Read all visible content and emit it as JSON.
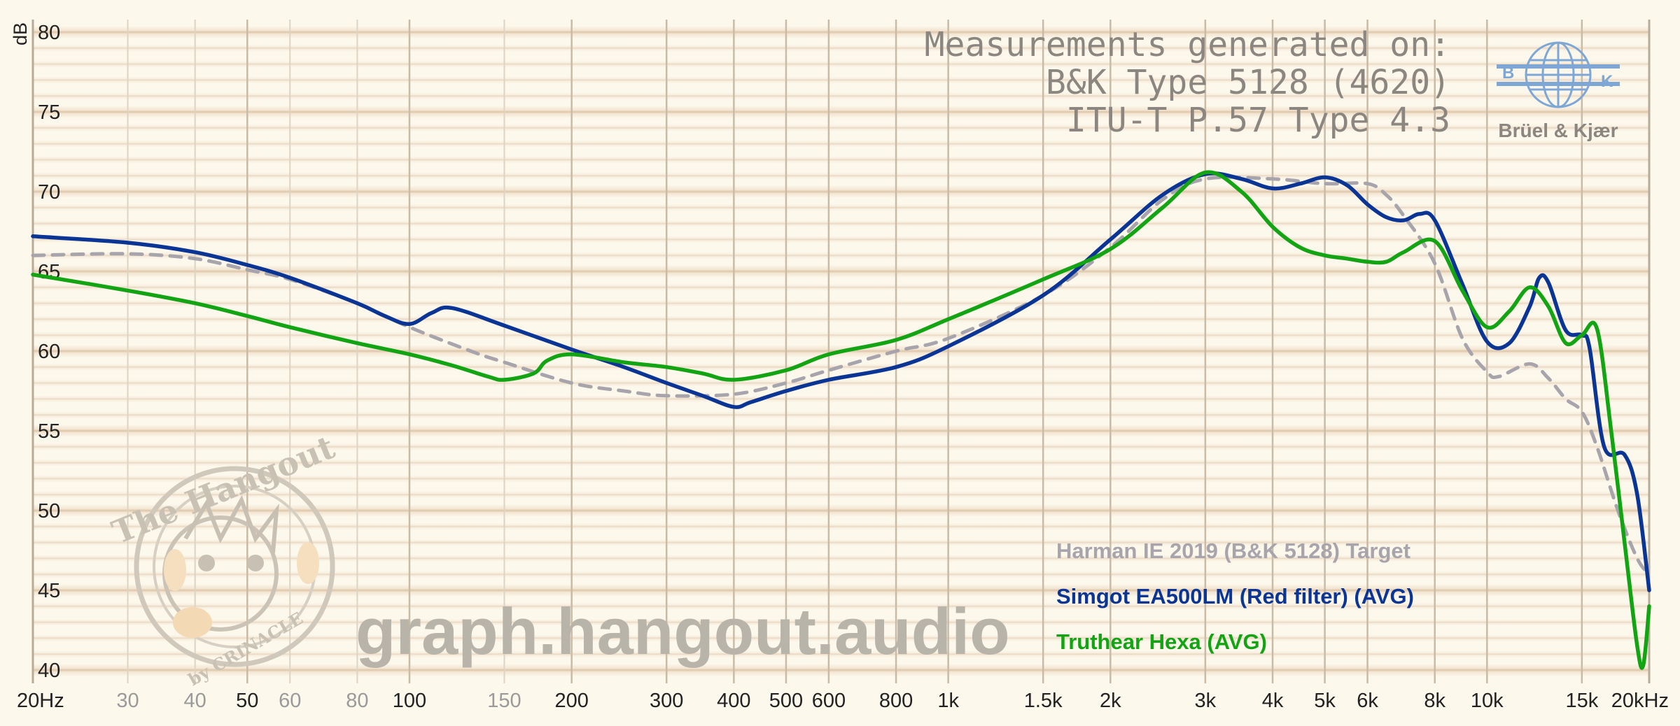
{
  "header": {
    "measurement_lines": [
      "Measurements generated on:",
      "B&K Type 5128 (4620)",
      "ITU-T P.57 Type 4.3"
    ],
    "logo_text": "Brüel & Kjær",
    "logo_letters": [
      "B",
      "K"
    ]
  },
  "watermark": {
    "site": "graph.hangout.audio",
    "stamp_top": "The Hangout",
    "stamp_bottom": "by CRINACLE"
  },
  "chart_data": {
    "type": "line",
    "title": "",
    "xlabel": "",
    "ylabel": "dB",
    "x_scale": "log",
    "xlim": [
      20,
      20000
    ],
    "ylim": [
      40,
      80
    ],
    "grid": true,
    "legend_position": "bottom-right",
    "y_ticks": [
      "80",
      "75",
      "70",
      "65",
      "60",
      "55",
      "50",
      "45",
      "40"
    ],
    "x_ticks": [
      {
        "value": 20,
        "label": "20Hz",
        "minor": false
      },
      {
        "value": 30,
        "label": "30",
        "minor": true
      },
      {
        "value": 40,
        "label": "40",
        "minor": true
      },
      {
        "value": 50,
        "label": "50",
        "minor": false
      },
      {
        "value": 60,
        "label": "60",
        "minor": true
      },
      {
        "value": 80,
        "label": "80",
        "minor": true
      },
      {
        "value": 100,
        "label": "100",
        "minor": false
      },
      {
        "value": 150,
        "label": "150",
        "minor": true
      },
      {
        "value": 200,
        "label": "200",
        "minor": false
      },
      {
        "value": 300,
        "label": "300",
        "minor": false
      },
      {
        "value": 400,
        "label": "400",
        "minor": false
      },
      {
        "value": 500,
        "label": "500",
        "minor": false
      },
      {
        "value": 600,
        "label": "600",
        "minor": false
      },
      {
        "value": 800,
        "label": "800",
        "minor": false
      },
      {
        "value": 1000,
        "label": "1k",
        "minor": false
      },
      {
        "value": 1500,
        "label": "1.5k",
        "minor": false
      },
      {
        "value": 2000,
        "label": "2k",
        "minor": false
      },
      {
        "value": 3000,
        "label": "3k",
        "minor": false
      },
      {
        "value": 4000,
        "label": "4k",
        "minor": false
      },
      {
        "value": 5000,
        "label": "5k",
        "minor": false
      },
      {
        "value": 6000,
        "label": "6k",
        "minor": false
      },
      {
        "value": 8000,
        "label": "8k",
        "minor": false
      },
      {
        "value": 10000,
        "label": "10k",
        "minor": false
      },
      {
        "value": 15000,
        "label": "15k",
        "minor": false
      },
      {
        "value": 20000,
        "label": "20kHz",
        "minor": false
      }
    ],
    "series": [
      {
        "name": "Harman IE 2019 (B&K 5128) Target",
        "color": "#a8a4ac",
        "style": "dashed",
        "points": [
          [
            20,
            66.0
          ],
          [
            30,
            66.1
          ],
          [
            40,
            65.8
          ],
          [
            50,
            65.1
          ],
          [
            60,
            64.5
          ],
          [
            80,
            63.0
          ],
          [
            100,
            61.5
          ],
          [
            130,
            60.0
          ],
          [
            150,
            59.3
          ],
          [
            200,
            58.0
          ],
          [
            250,
            57.5
          ],
          [
            300,
            57.2
          ],
          [
            400,
            57.3
          ],
          [
            500,
            58.0
          ],
          [
            600,
            58.8
          ],
          [
            800,
            60.0
          ],
          [
            1000,
            60.8
          ],
          [
            1500,
            63.5
          ],
          [
            2000,
            66.5
          ],
          [
            2500,
            69.5
          ],
          [
            3000,
            70.8
          ],
          [
            4000,
            70.8
          ],
          [
            5000,
            70.5
          ],
          [
            6000,
            70.5
          ],
          [
            6500,
            69.8
          ],
          [
            7000,
            68.5
          ],
          [
            8000,
            65.5
          ],
          [
            9000,
            60.8
          ],
          [
            10000,
            58.7
          ],
          [
            10500,
            58.4
          ],
          [
            12000,
            59.2
          ],
          [
            13000,
            58.3
          ],
          [
            14000,
            57.0
          ],
          [
            15000,
            56.2
          ],
          [
            16000,
            54.0
          ],
          [
            17500,
            50.0
          ],
          [
            19000,
            47.0
          ],
          [
            20000,
            46.0
          ]
        ]
      },
      {
        "name": "Simgot EA500LM (Red filter) (AVG)",
        "color": "#0a3594",
        "style": "solid",
        "points": [
          [
            20,
            67.2
          ],
          [
            30,
            66.8
          ],
          [
            40,
            66.2
          ],
          [
            50,
            65.4
          ],
          [
            60,
            64.6
          ],
          [
            80,
            63.0
          ],
          [
            90,
            62.2
          ],
          [
            100,
            61.7
          ],
          [
            110,
            62.4
          ],
          [
            120,
            62.7
          ],
          [
            150,
            61.6
          ],
          [
            200,
            60.1
          ],
          [
            250,
            59.0
          ],
          [
            300,
            58.0
          ],
          [
            350,
            57.2
          ],
          [
            400,
            56.5
          ],
          [
            430,
            56.8
          ],
          [
            500,
            57.5
          ],
          [
            600,
            58.2
          ],
          [
            800,
            59.0
          ],
          [
            1000,
            60.3
          ],
          [
            1500,
            63.5
          ],
          [
            2000,
            67.0
          ],
          [
            2500,
            69.8
          ],
          [
            3000,
            71.1
          ],
          [
            3500,
            70.8
          ],
          [
            4000,
            70.2
          ],
          [
            4500,
            70.5
          ],
          [
            5000,
            70.9
          ],
          [
            5500,
            70.4
          ],
          [
            6000,
            69.2
          ],
          [
            6500,
            68.4
          ],
          [
            7000,
            68.2
          ],
          [
            7500,
            68.6
          ],
          [
            8000,
            68.2
          ],
          [
            9000,
            64.2
          ],
          [
            10000,
            60.6
          ],
          [
            11000,
            60.5
          ],
          [
            12000,
            62.8
          ],
          [
            12500,
            64.6
          ],
          [
            13000,
            64.3
          ],
          [
            14000,
            61.3
          ],
          [
            15000,
            61.0
          ],
          [
            15500,
            60.2
          ],
          [
            16500,
            54.0
          ],
          [
            18000,
            53.5
          ],
          [
            19000,
            51.0
          ],
          [
            20000,
            45.0
          ]
        ]
      },
      {
        "name": "Truthear Hexa (AVG)",
        "color": "#12a412",
        "style": "solid",
        "points": [
          [
            20,
            64.8
          ],
          [
            30,
            63.8
          ],
          [
            40,
            63.0
          ],
          [
            50,
            62.2
          ],
          [
            60,
            61.5
          ],
          [
            80,
            60.5
          ],
          [
            100,
            59.8
          ],
          [
            120,
            59.1
          ],
          [
            140,
            58.4
          ],
          [
            150,
            58.2
          ],
          [
            170,
            58.6
          ],
          [
            180,
            59.4
          ],
          [
            200,
            59.8
          ],
          [
            250,
            59.3
          ],
          [
            300,
            59.0
          ],
          [
            350,
            58.6
          ],
          [
            400,
            58.2
          ],
          [
            500,
            58.8
          ],
          [
            600,
            59.8
          ],
          [
            800,
            60.7
          ],
          [
            1000,
            62.0
          ],
          [
            1500,
            64.5
          ],
          [
            2000,
            66.4
          ],
          [
            2500,
            69.0
          ],
          [
            3000,
            71.2
          ],
          [
            3500,
            70.0
          ],
          [
            4000,
            67.8
          ],
          [
            4500,
            66.5
          ],
          [
            5000,
            66.0
          ],
          [
            5500,
            65.8
          ],
          [
            6000,
            65.6
          ],
          [
            6500,
            65.6
          ],
          [
            7000,
            66.2
          ],
          [
            8000,
            66.9
          ],
          [
            9000,
            63.8
          ],
          [
            10000,
            61.5
          ],
          [
            11000,
            62.5
          ],
          [
            12000,
            64.0
          ],
          [
            13000,
            62.8
          ],
          [
            14000,
            60.5
          ],
          [
            15000,
            61.0
          ],
          [
            16000,
            61.4
          ],
          [
            17000,
            55.0
          ],
          [
            18000,
            48.0
          ],
          [
            19000,
            41.5
          ],
          [
            19500,
            40.3
          ],
          [
            20000,
            44.0
          ]
        ]
      }
    ]
  }
}
